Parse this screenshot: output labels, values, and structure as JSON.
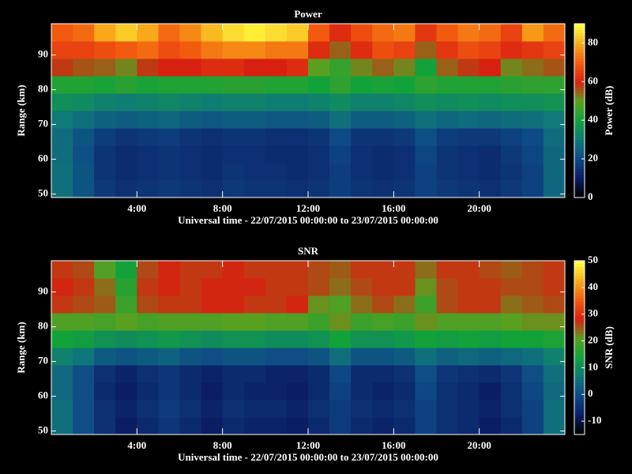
{
  "chart_data": [
    {
      "type": "heatmap",
      "title": "Power",
      "xlabel": "Universal time - 22/07/2015 00:00:00 to 23/07/2015 00:00:00",
      "ylabel": "Range (km)",
      "colorbar_label": "Power (dB)",
      "x": [
        0.5,
        1.5,
        2.5,
        3.5,
        4.5,
        5.5,
        6.5,
        7.5,
        8.5,
        9.5,
        10.5,
        11.5,
        12.5,
        13.5,
        14.5,
        15.5,
        16.5,
        17.5,
        18.5,
        19.5,
        20.5,
        21.5,
        22.5,
        23.5
      ],
      "y": [
        51.5,
        56.5,
        61.5,
        66.5,
        71.5,
        76.5,
        81.5,
        86.5,
        91.5,
        96.5
      ],
      "z": [
        [
          28,
          22,
          16,
          14,
          15,
          16,
          15,
          14,
          16,
          15,
          15,
          14,
          15,
          17,
          15,
          14,
          15,
          18,
          16,
          15,
          14,
          16,
          18,
          26
        ],
        [
          28,
          22,
          15,
          13,
          14,
          15,
          14,
          13,
          15,
          14,
          14,
          13,
          14,
          17,
          14,
          13,
          14,
          18,
          15,
          14,
          13,
          15,
          18,
          26
        ],
        [
          27,
          21,
          15,
          13,
          14,
          15,
          14,
          13,
          14,
          14,
          13,
          13,
          14,
          18,
          14,
          13,
          14,
          19,
          15,
          14,
          13,
          16,
          19,
          26
        ],
        [
          27,
          22,
          17,
          15,
          16,
          17,
          15,
          14,
          15,
          15,
          14,
          14,
          15,
          20,
          15,
          15,
          16,
          21,
          17,
          16,
          16,
          18,
          20,
          27
        ],
        [
          30,
          28,
          25,
          24,
          25,
          26,
          24,
          23,
          24,
          24,
          23,
          23,
          24,
          28,
          24,
          24,
          25,
          28,
          26,
          27,
          26,
          27,
          28,
          30
        ],
        [
          35,
          34,
          32,
          31,
          32,
          33,
          32,
          31,
          32,
          32,
          31,
          31,
          32,
          34,
          32,
          32,
          33,
          35,
          34,
          35,
          34,
          35,
          35,
          36
        ],
        [
          42,
          42,
          41,
          43,
          41,
          42,
          42,
          42,
          43,
          43,
          42,
          42,
          40,
          44,
          40,
          41,
          40,
          44,
          42,
          42,
          42,
          43,
          44,
          44
        ],
        [
          58,
          56,
          55,
          52,
          58,
          60,
          60,
          62,
          62,
          60,
          60,
          62,
          50,
          45,
          52,
          55,
          52,
          40,
          55,
          58,
          60,
          52,
          54,
          56
        ],
        [
          66,
          66,
          68,
          70,
          72,
          68,
          70,
          74,
          76,
          76,
          74,
          74,
          62,
          55,
          62,
          68,
          66,
          55,
          64,
          68,
          66,
          62,
          64,
          66
        ],
        [
          70,
          72,
          80,
          84,
          80,
          72,
          76,
          82,
          86,
          88,
          86,
          84,
          70,
          62,
          68,
          72,
          74,
          64,
          70,
          74,
          72,
          66,
          78,
          72
        ]
      ],
      "xlim": [
        0,
        24
      ],
      "ylim": [
        49,
        99
      ],
      "xticks": [
        {
          "value": 4,
          "label": "4:00"
        },
        {
          "value": 8,
          "label": "8:00"
        },
        {
          "value": 12,
          "label": "12:00"
        },
        {
          "value": 16,
          "label": "16:00"
        },
        {
          "value": 20,
          "label": "20:00"
        }
      ],
      "yticks": [
        50,
        60,
        70,
        80,
        90
      ],
      "clim": [
        0,
        90
      ],
      "cticks": [
        0,
        20,
        40,
        60,
        80
      ],
      "colormap": [
        "#000000",
        "#0b1f66",
        "#0e4a86",
        "#0f7a78",
        "#12a23a",
        "#5aa020",
        "#d82010",
        "#f25a10",
        "#f8a818",
        "#ffff40"
      ]
    },
    {
      "type": "heatmap",
      "title": "SNR",
      "xlabel": "Universal time - 22/07/2015 00:00:00 to 23/07/2015 00:00:00",
      "ylabel": "Range (km)",
      "colorbar_label": "SNR (dB)",
      "x": [
        0.5,
        1.5,
        2.5,
        3.5,
        4.5,
        5.5,
        6.5,
        7.5,
        8.5,
        9.5,
        10.5,
        11.5,
        12.5,
        13.5,
        14.5,
        15.5,
        16.5,
        17.5,
        18.5,
        19.5,
        20.5,
        21.5,
        22.5,
        23.5
      ],
      "y": [
        51.5,
        56.5,
        61.5,
        66.5,
        71.5,
        76.5,
        81.5,
        86.5,
        91.5,
        96.5
      ],
      "z": [
        [
          5,
          0,
          -5,
          -8,
          -6,
          -4,
          -6,
          -8,
          -6,
          -7,
          -7,
          -8,
          -6,
          -3,
          -6,
          -7,
          -6,
          -2,
          -5,
          -6,
          -8,
          -6,
          -2,
          5
        ],
        [
          5,
          0,
          -5,
          -7,
          -5,
          -3,
          -5,
          -7,
          -5,
          -6,
          -6,
          -7,
          -5,
          -3,
          -5,
          -6,
          -5,
          -2,
          -5,
          -6,
          -7,
          -5,
          -2,
          5
        ],
        [
          4,
          0,
          -6,
          -8,
          -6,
          -4,
          -6,
          -8,
          -6,
          -7,
          -7,
          -8,
          -6,
          -2,
          -6,
          -7,
          -6,
          -1,
          -5,
          -6,
          -8,
          -5,
          -1,
          4
        ],
        [
          4,
          0,
          -5,
          -7,
          -5,
          -4,
          -6,
          -7,
          -6,
          -6,
          -7,
          -7,
          -6,
          -1,
          -6,
          -6,
          -5,
          0,
          -4,
          -5,
          -6,
          -4,
          0,
          5
        ],
        [
          8,
          6,
          2,
          1,
          2,
          3,
          1,
          0,
          1,
          1,
          0,
          0,
          1,
          5,
          1,
          1,
          2,
          5,
          3,
          4,
          3,
          4,
          5,
          8
        ],
        [
          14,
          13,
          11,
          10,
          11,
          12,
          11,
          10,
          11,
          11,
          10,
          10,
          11,
          14,
          11,
          11,
          12,
          14,
          13,
          14,
          13,
          14,
          14,
          15
        ],
        [
          20,
          20,
          19,
          21,
          19,
          20,
          20,
          20,
          21,
          21,
          20,
          20,
          18,
          22,
          18,
          19,
          18,
          22,
          20,
          20,
          20,
          21,
          22,
          22
        ],
        [
          27,
          26,
          25,
          18,
          26,
          27,
          27,
          28,
          28,
          27,
          27,
          28,
          22,
          20,
          24,
          26,
          24,
          18,
          26,
          27,
          27,
          24,
          25,
          26
        ],
        [
          28,
          27,
          24,
          16,
          27,
          28,
          27,
          28,
          28,
          28,
          27,
          27,
          26,
          24,
          26,
          27,
          27,
          22,
          26,
          27,
          27,
          26,
          26,
          27
        ],
        [
          27,
          26,
          20,
          14,
          26,
          28,
          27,
          27,
          28,
          27,
          27,
          27,
          26,
          25,
          27,
          27,
          27,
          24,
          27,
          27,
          26,
          25,
          26,
          27
        ]
      ],
      "xlim": [
        0,
        24
      ],
      "ylim": [
        49,
        99
      ],
      "xticks": [
        {
          "value": 4,
          "label": "4:00"
        },
        {
          "value": 8,
          "label": "8:00"
        },
        {
          "value": 12,
          "label": "12:00"
        },
        {
          "value": 16,
          "label": "16:00"
        },
        {
          "value": 20,
          "label": "20:00"
        }
      ],
      "yticks": [
        50,
        60,
        70,
        80,
        90
      ],
      "clim": [
        -15,
        50
      ],
      "cticks": [
        -10,
        0,
        10,
        20,
        30,
        40,
        50
      ],
      "colormap": [
        "#000000",
        "#0b1f66",
        "#0e4a86",
        "#0f7a78",
        "#12a23a",
        "#5aa020",
        "#d82010",
        "#f25a10",
        "#f8a818",
        "#ffff40"
      ]
    }
  ]
}
